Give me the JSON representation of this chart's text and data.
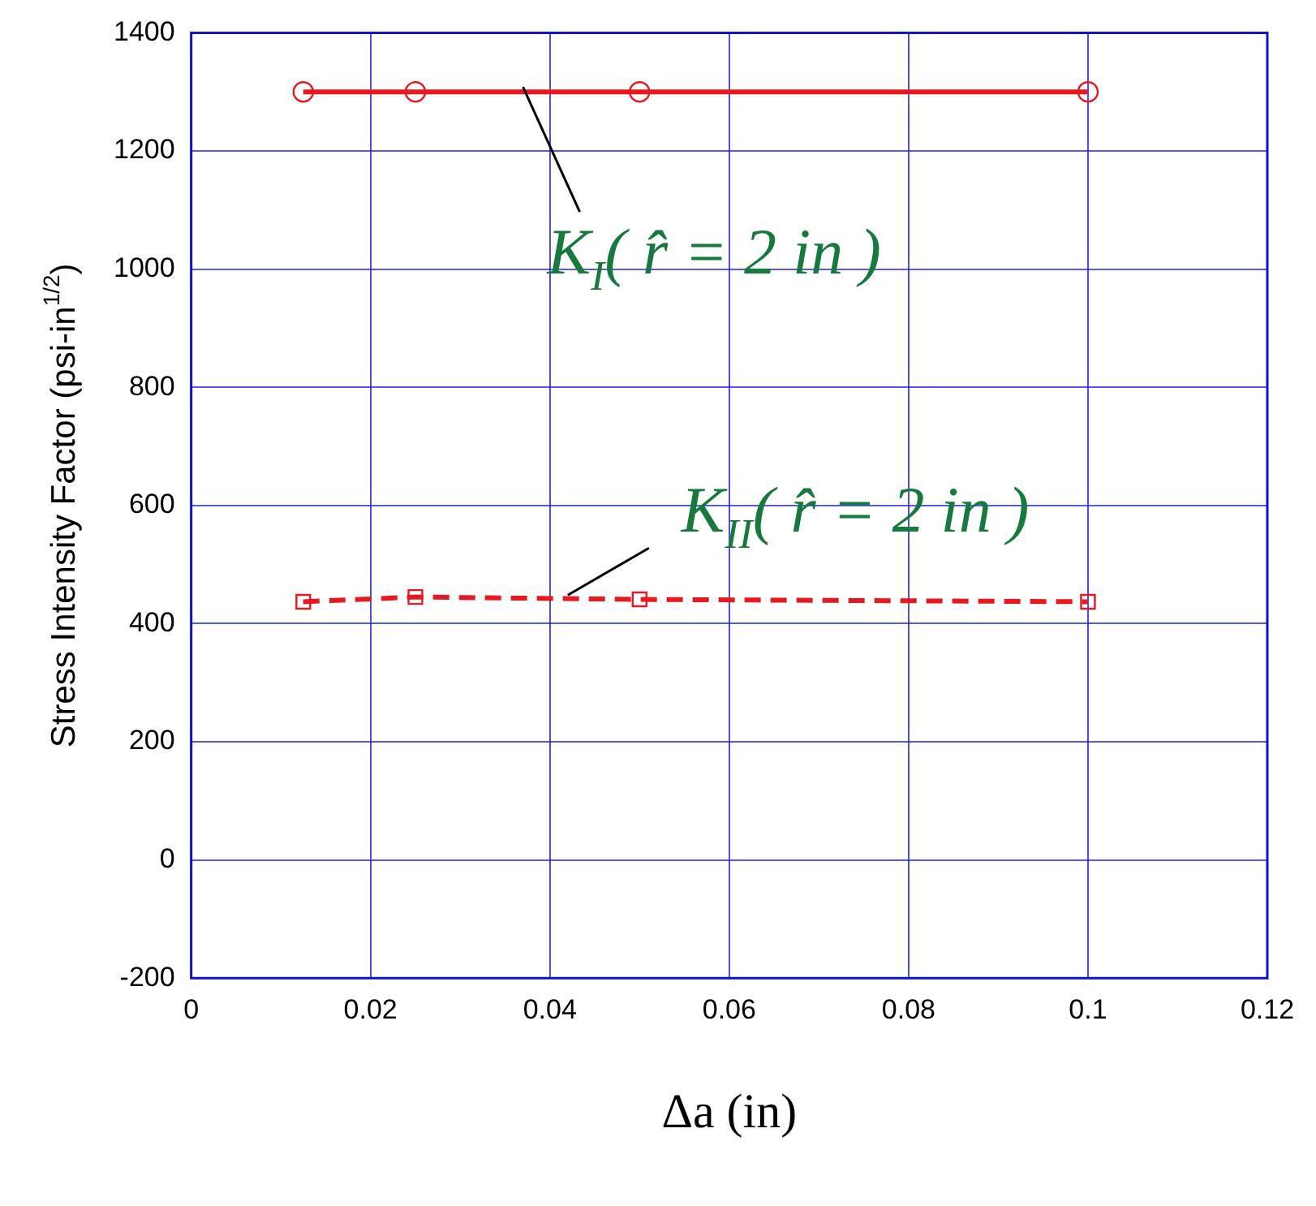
{
  "chart_data": {
    "type": "line",
    "xlabel": "Δa (in)",
    "ylabel": "Stress Intensity Factor (psi-in$^{1/2}$)",
    "x": [
      0.0125,
      0.025,
      0.05,
      0.1
    ],
    "series": [
      {
        "color": "#e8191e",
        "values": [
          1300,
          1300,
          1300,
          1300
        ],
        "marker": "circle",
        "line_style": "solid"
      },
      {
        "color": "#e8191e",
        "values": [
          437,
          445,
          441,
          437
        ],
        "marker": "square",
        "line_style": "dashed"
      }
    ],
    "xlim": [
      0,
      0.12
    ],
    "xticks": [
      0,
      0.02,
      0.04,
      0.06,
      0.08,
      0.1,
      0.12
    ],
    "ylim": [
      -200,
      1400
    ],
    "yticks": [
      -200,
      0,
      200,
      400,
      600,
      800,
      1000,
      1200,
      1400
    ],
    "grid": true,
    "legend": false,
    "annotations": [
      {
        "text": "K$_{I}$( r̂ = 2 in )",
        "x": 0.037,
        "y": 1300
      },
      {
        "text": "K$_{II}$( r̂ = 2 in )",
        "x": 0.042,
        "y": 440
      }
    ]
  }
}
